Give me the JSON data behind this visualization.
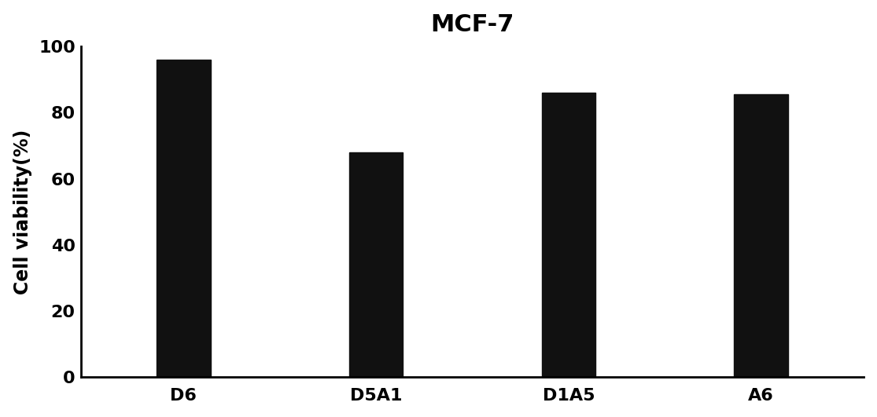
{
  "categories": [
    "D6",
    "D5A1",
    "D1A5",
    "A6"
  ],
  "values": [
    96,
    68,
    86,
    85.5
  ],
  "bar_color": "#111111",
  "title": "MCF-7",
  "ylabel": "Cell viability(%)",
  "ylim": [
    0,
    100
  ],
  "yticks": [
    0,
    20,
    40,
    60,
    80,
    100
  ],
  "title_fontsize": 22,
  "label_fontsize": 17,
  "tick_fontsize": 16,
  "bar_width": 0.28,
  "background_color": "#ffffff"
}
